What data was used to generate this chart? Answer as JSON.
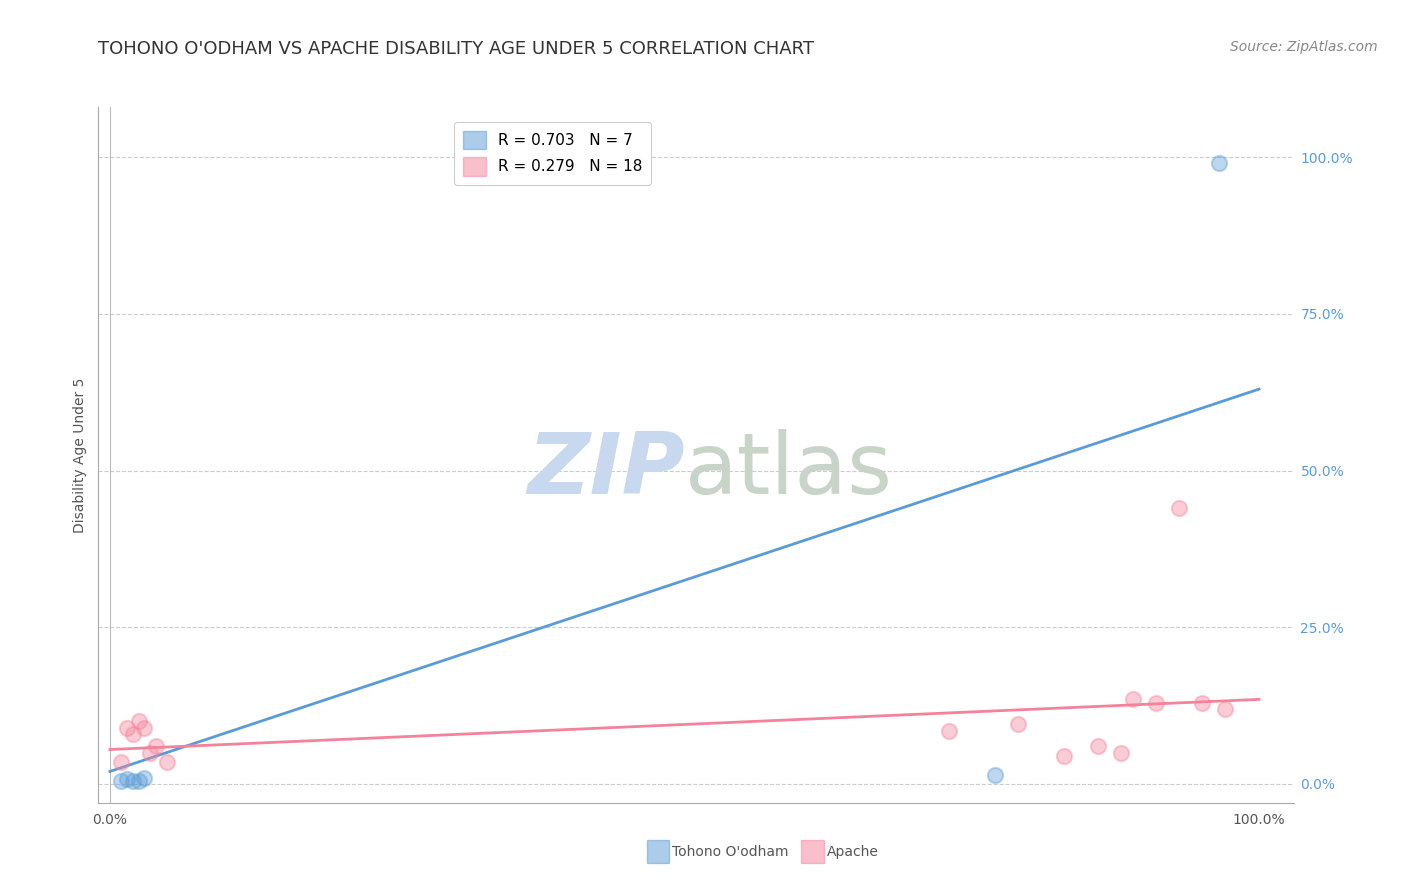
{
  "title": "TOHONO O'ODHAM VS APACHE DISABILITY AGE UNDER 5 CORRELATION CHART",
  "source": "Source: ZipAtlas.com",
  "ylabel": "Disability Age Under 5",
  "xlim": [
    -1,
    103
  ],
  "ylim": [
    -3,
    108
  ],
  "ytick_values_right": [
    0,
    25,
    50,
    75,
    100
  ],
  "ytick_labels_right": [
    "0.0%",
    "25.0%",
    "50.0%",
    "75.0%",
    "100.0%"
  ],
  "blue_color": "#5b9bd5",
  "pink_color": "#f4829a",
  "blue_label": "Tohono O'odham",
  "pink_label": "Apache",
  "blue_R": "0.703",
  "blue_N": "7",
  "pink_R": "0.279",
  "pink_N": "18",
  "blue_scatter_x": [
    1.0,
    1.5,
    2.0,
    2.5,
    3.0,
    77.0,
    96.5
  ],
  "blue_scatter_y": [
    0.5,
    0.8,
    0.5,
    0.5,
    1.0,
    1.5,
    99.0
  ],
  "pink_scatter_x": [
    1.0,
    1.5,
    2.0,
    2.5,
    3.0,
    3.5,
    4.0,
    5.0,
    73.0,
    79.0,
    83.0,
    86.0,
    88.0,
    89.0,
    91.0,
    93.0,
    95.0,
    97.0
  ],
  "pink_scatter_y": [
    3.5,
    9.0,
    8.0,
    10.0,
    9.0,
    5.0,
    6.0,
    3.5,
    8.5,
    9.5,
    4.5,
    6.0,
    5.0,
    13.5,
    13.0,
    44.0,
    13.0,
    12.0
  ],
  "blue_line_x": [
    0,
    100
  ],
  "blue_line_y": [
    2.0,
    63.0
  ],
  "pink_line_x": [
    0,
    100
  ],
  "pink_line_y": [
    5.5,
    13.5
  ],
  "watermark_zip": "ZIP",
  "watermark_atlas": "atlas",
  "watermark_color_zip": "#c8d8ee",
  "watermark_color_atlas": "#c8d4c8",
  "background_color": "#ffffff",
  "grid_color": "#cccccc",
  "title_fontsize": 13,
  "axis_label_fontsize": 10,
  "tick_fontsize": 10,
  "legend_fontsize": 11,
  "source_fontsize": 10,
  "marker_size": 120,
  "marker_alpha": 0.4,
  "marker_edge_width": 1.5
}
